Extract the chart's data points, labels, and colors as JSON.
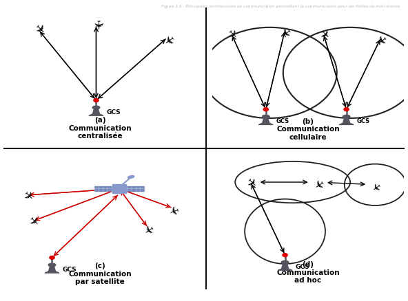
{
  "title": "Figure 1.5 : Principales architectures de communication permettant la communication pour les flottes de mini-drones",
  "quadrant_labels": {
    "a": "(a)\nCommunication\ncentralisée",
    "b": "(b)\nCommunication\ncellulaire",
    "c": "(c)\nCommunication\npar satellite",
    "d": "(d)\nCommunication\nad hoc"
  },
  "arrow_color_black": "#000000",
  "arrow_color_red": "#cc0000",
  "gcs_body_color": "#555560",
  "red_dot_color": "#dd0000",
  "circle_color": "#222222",
  "bg_color": "#ffffff",
  "plane_color": "#111111",
  "sat_panel_color": "#7788bb",
  "sat_body_color": "#8899cc",
  "divider_color": "#111111",
  "label_fontsize": 7.5,
  "label_fontweight": "bold"
}
